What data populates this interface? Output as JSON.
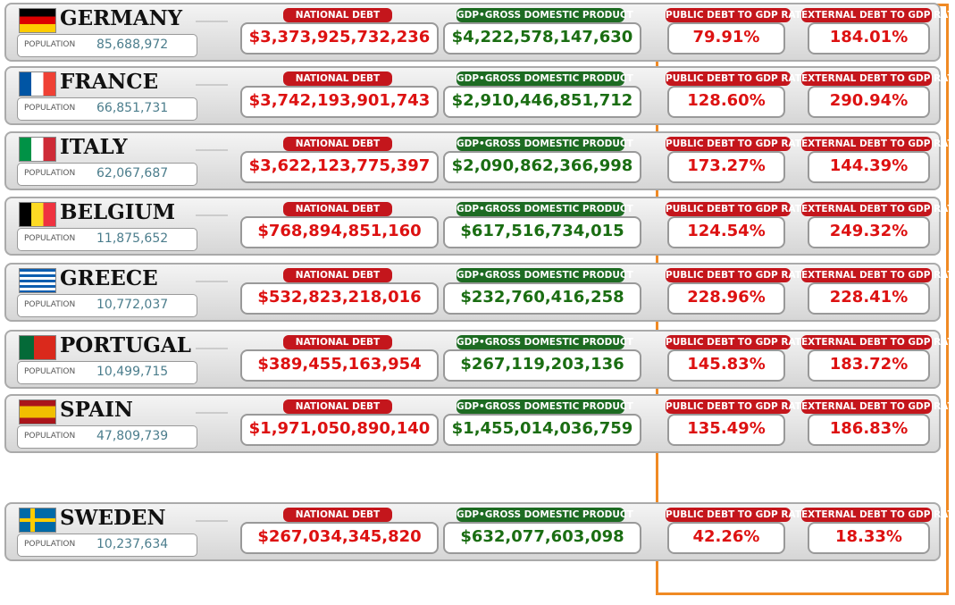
{
  "labels": {
    "population": "POPULATION",
    "national_debt": "NATIONAL DEBT",
    "gdp": "GDP•GROSS DOMESTIC PRODUCT",
    "public_ratio": "PUBLIC DEBT TO GDP RATIO",
    "external_ratio": "EXTERNAL DEBT TO GDP RATIO"
  },
  "rows": [
    {
      "country": "GERMANY",
      "population": "85,688,972",
      "national_debt": "$3,373,925,732,236",
      "gdp": "$4,222,578,147,630",
      "public_ratio": "79.91%",
      "external_ratio": "184.01%"
    },
    {
      "country": "FRANCE",
      "population": "66,851,731",
      "national_debt": "$3,742,193,901,743",
      "gdp": "$2,910,446,851,712",
      "public_ratio": "128.60%",
      "external_ratio": "290.94%"
    },
    {
      "country": "ITALY",
      "population": "62,067,687",
      "national_debt": "$3,622,123,775,397",
      "gdp": "$2,090,862,366,998",
      "public_ratio": "173.27%",
      "external_ratio": "144.39%"
    },
    {
      "country": "BELGIUM",
      "population": "11,875,652",
      "national_debt": "$768,894,851,160",
      "gdp": "$617,516,734,015",
      "public_ratio": "124.54%",
      "external_ratio": "249.32%"
    },
    {
      "country": "GREECE",
      "population": "10,772,037",
      "national_debt": "$532,823,218,016",
      "gdp": "$232,760,416,258",
      "public_ratio": "228.96%",
      "external_ratio": "228.41%"
    },
    {
      "country": "PORTUGAL",
      "population": "10,499,715",
      "national_debt": "$389,455,163,954",
      "gdp": "$267,119,203,136",
      "public_ratio": "145.83%",
      "external_ratio": "183.72%"
    },
    {
      "country": "SPAIN",
      "population": "47,809,739",
      "national_debt": "$1,971,050,890,140",
      "gdp": "$1,455,014,036,759",
      "public_ratio": "135.49%",
      "external_ratio": "186.83%"
    },
    {
      "country": "SWEDEN",
      "population": "10,237,634",
      "national_debt": "$267,034,345,820",
      "gdp": "$632,077,603,098",
      "public_ratio": "42.26%",
      "external_ratio": "18.33%"
    }
  ]
}
